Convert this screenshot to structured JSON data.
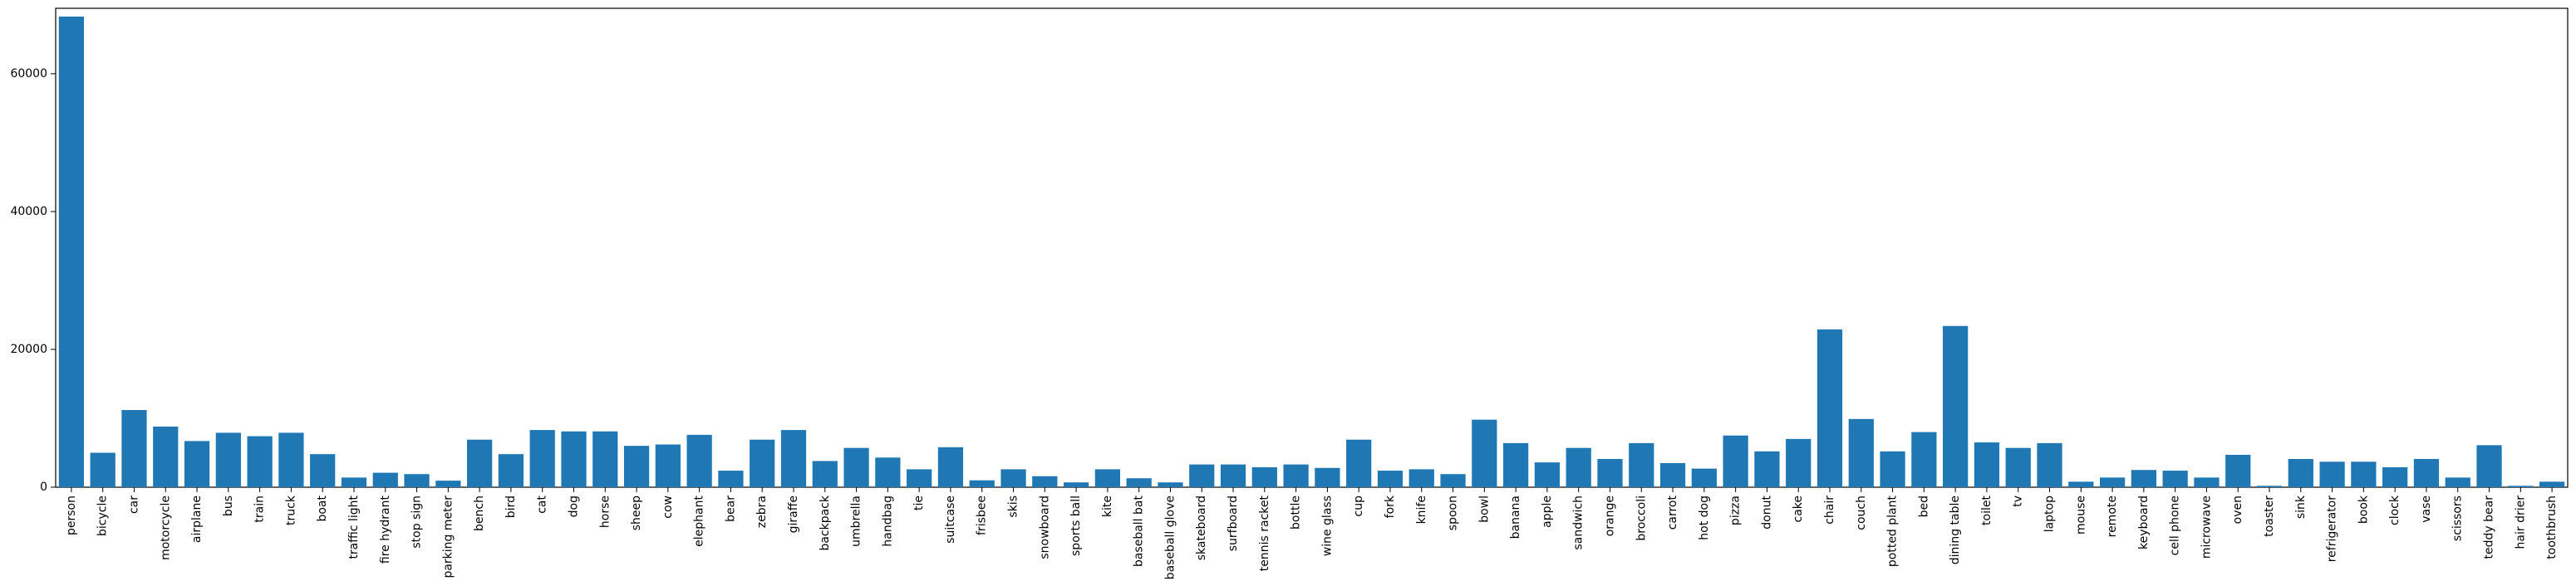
{
  "chart_data": {
    "type": "bar",
    "categories": [
      "person",
      "bicycle",
      "car",
      "motorcycle",
      "airplane",
      "bus",
      "train",
      "truck",
      "boat",
      "traffic light",
      "fire hydrant",
      "stop sign",
      "parking meter",
      "bench",
      "bird",
      "cat",
      "dog",
      "horse",
      "sheep",
      "cow",
      "elephant",
      "bear",
      "zebra",
      "giraffe",
      "backpack",
      "umbrella",
      "handbag",
      "tie",
      "suitcase",
      "frisbee",
      "skis",
      "snowboard",
      "sports ball",
      "kite",
      "baseball bat",
      "baseball glove",
      "skateboard",
      "surfboard",
      "tennis racket",
      "bottle",
      "wine glass",
      "cup",
      "fork",
      "knife",
      "spoon",
      "bowl",
      "banana",
      "apple",
      "sandwich",
      "orange",
      "broccoli",
      "carrot",
      "hot dog",
      "pizza",
      "donut",
      "cake",
      "chair",
      "couch",
      "potted plant",
      "bed",
      "dining table",
      "toilet",
      "tv",
      "laptop",
      "mouse",
      "remote",
      "keyboard",
      "cell phone",
      "microwave",
      "oven",
      "toaster",
      "sink",
      "refrigerator",
      "book",
      "clock",
      "vase",
      "scissors",
      "teddy bear",
      "hair drier",
      "toothbrush"
    ],
    "values": [
      68300,
      5000,
      11200,
      8800,
      6700,
      7900,
      7400,
      7900,
      4800,
      1400,
      2100,
      1900,
      950,
      6900,
      4800,
      8300,
      8100,
      8100,
      6000,
      6200,
      7600,
      2400,
      6900,
      8300,
      3800,
      5700,
      4300,
      2600,
      5800,
      1000,
      2600,
      1600,
      700,
      2600,
      1300,
      700,
      3300,
      3300,
      2900,
      3300,
      2800,
      6900,
      2400,
      2600,
      1900,
      9800,
      6400,
      3600,
      5700,
      4100,
      6400,
      3500,
      2700,
      7500,
      5200,
      7000,
      22900,
      9900,
      5200,
      8000,
      23400,
      6500,
      5700,
      6400,
      800,
      1400,
      2500,
      2400,
      1400,
      4700,
      200,
      4100,
      3700,
      3700,
      2900,
      4100,
      1400,
      6100,
      200,
      800
    ],
    "color": "#1f77b4",
    "ylim": [
      0,
      69500
    ],
    "yticks": [
      0,
      20000,
      40000,
      60000
    ]
  }
}
